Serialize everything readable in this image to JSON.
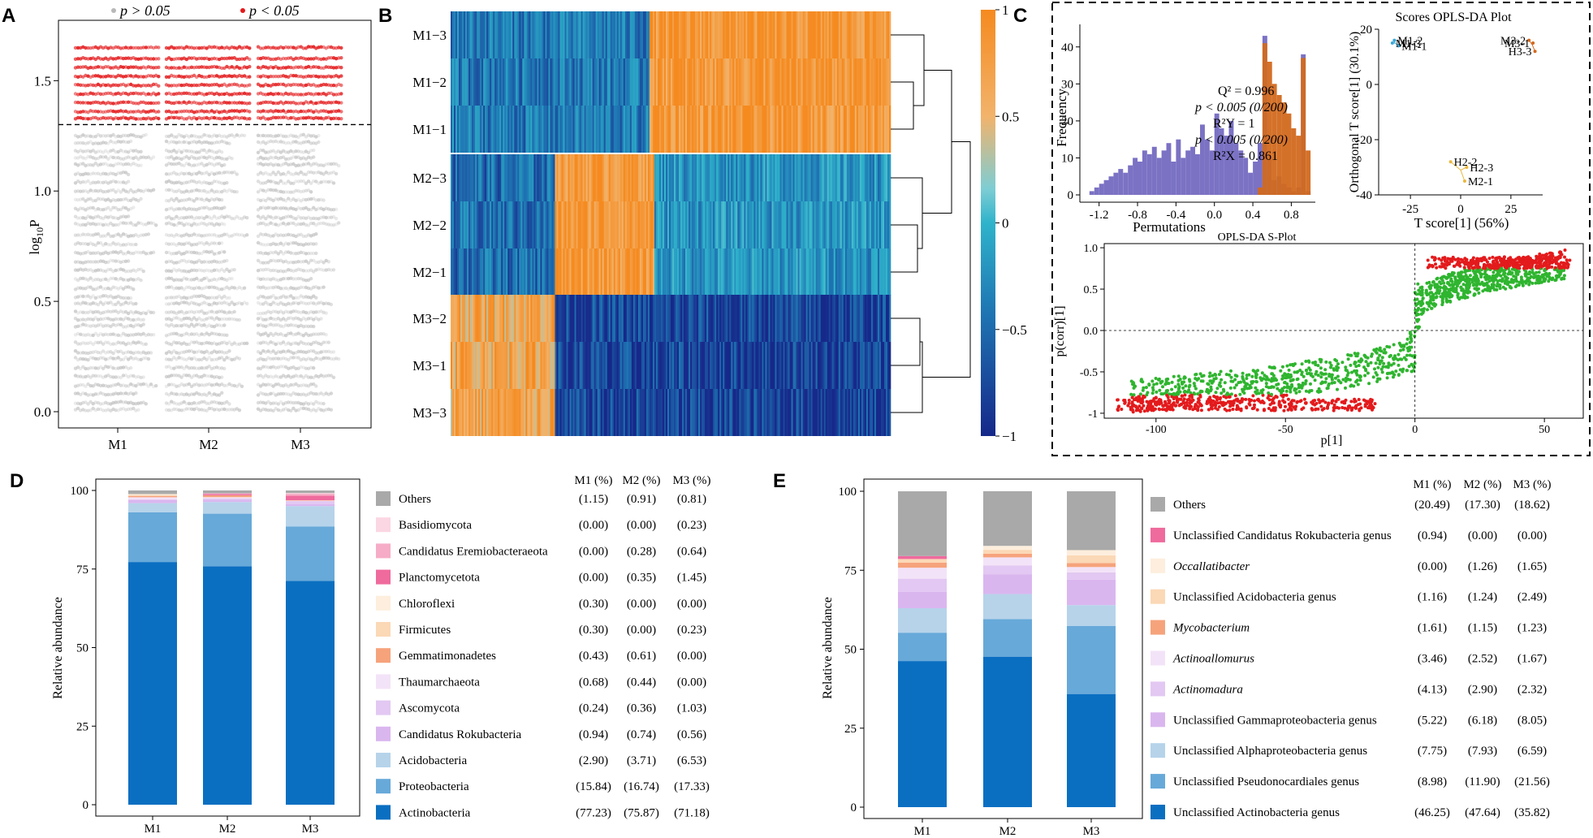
{
  "panel_letters": [
    "A",
    "B",
    "C",
    "D",
    "E"
  ],
  "chart_data": [
    {
      "panel": "A",
      "type": "scatter",
      "title": "",
      "xlabel": "",
      "ylabel": "log10P",
      "ylabel_main": "log",
      "ylabel_sub": "10",
      "ylabel_tail": "P",
      "categories": [
        "M1",
        "M2",
        "M3"
      ],
      "ylim": [
        0,
        1.7
      ],
      "yticks": [
        "0.0",
        "0.5",
        "1.0",
        "1.5"
      ],
      "threshold": 1.30103,
      "legend": [
        {
          "label": "p > 0.05",
          "color": "#b8b8b8"
        },
        {
          "label": "p < 0.05",
          "color": "#e31a1c"
        }
      ],
      "red_levels": [
        1.65,
        1.6,
        1.56,
        1.52,
        1.48,
        1.44,
        1.4,
        1.36,
        1.33
      ],
      "gray_levels": [
        1.25,
        1.22,
        1.18,
        1.15,
        1.12,
        1.08,
        1.04,
        1.0,
        0.96,
        0.92,
        0.88,
        0.85,
        0.8,
        0.76,
        0.72,
        0.68,
        0.64,
        0.6,
        0.56,
        0.52,
        0.49,
        0.45,
        0.42,
        0.39,
        0.35,
        0.31,
        0.27,
        0.24,
        0.2,
        0.16,
        0.12,
        0.08,
        0.04,
        0.01
      ]
    },
    {
      "panel": "B",
      "type": "heatmap",
      "rows": [
        "M1−3",
        "M1−2",
        "M1−1",
        "M2−3",
        "M2−2",
        "M2−1",
        "M3−2",
        "M3−1",
        "M3−3"
      ],
      "colorbar_ticks": [
        "1",
        "0.5",
        "0",
        "−0.5",
        "−1"
      ],
      "colorbar_values": [
        1,
        0.5,
        0,
        -0.5,
        -1
      ],
      "clusters": [
        "M1",
        "M2",
        "M3"
      ]
    },
    {
      "panel": "C1",
      "type": "bar",
      "subtype": "histogram",
      "xlabel": "Permutations",
      "ylabel": "Frequency",
      "xticks": [
        "-1.2",
        "-0.8",
        "-0.4",
        "0.0",
        "0.4",
        "0.8"
      ],
      "xtick_values": [
        -1.2,
        -0.8,
        -0.4,
        0.0,
        0.4,
        0.8
      ],
      "yticks": [
        "0",
        "10",
        "20",
        "30",
        "40"
      ],
      "ylim": [
        0,
        45
      ],
      "xlim": [
        -1.4,
        1.05
      ],
      "annotations": [
        "Q² = 0.996",
        "p < 0.005 (0/200)",
        "R²Y = 1",
        "p < 0.005 (0/200)",
        "R²X = 0.861"
      ],
      "series": [
        {
          "name": "Q2",
          "color": "#7b72c4",
          "x": [
            -1.3,
            -1.25,
            -1.2,
            -1.15,
            -1.1,
            -1.05,
            -1.0,
            -0.95,
            -0.9,
            -0.85,
            -0.8,
            -0.75,
            -0.7,
            -0.65,
            -0.6,
            -0.55,
            -0.5,
            -0.45,
            -0.4,
            -0.35,
            -0.3,
            -0.25,
            -0.2,
            -0.15,
            -0.1,
            -0.05,
            0.0,
            0.05,
            0.1,
            0.15,
            0.2,
            0.25,
            0.3,
            0.35,
            0.4,
            0.45,
            0.5,
            0.55,
            0.6,
            0.65,
            0.7,
            0.75,
            0.8,
            0.85,
            0.9,
            0.95
          ],
          "values": [
            1,
            2,
            3,
            4,
            5,
            6,
            7,
            6,
            8,
            10,
            9,
            12,
            11,
            13,
            10,
            12,
            14,
            9,
            15,
            10,
            12,
            13,
            11,
            19,
            15,
            12,
            22,
            18,
            16,
            20,
            14,
            12,
            10,
            6,
            9,
            14,
            43,
            10,
            4,
            5,
            3,
            2,
            1,
            2,
            38,
            1
          ]
        },
        {
          "name": "R2Y",
          "color": "#d2691e",
          "x": [
            0.45,
            0.5,
            0.55,
            0.6,
            0.65,
            0.7,
            0.75,
            0.8,
            0.85,
            0.9,
            0.95
          ],
          "values": [
            2,
            41,
            36,
            30,
            27,
            25,
            22,
            18,
            16,
            37,
            12
          ]
        }
      ]
    },
    {
      "panel": "C2",
      "type": "scatter",
      "title": "Scores OPLS-DA Plot",
      "xlabel": "T score[1] (56%)",
      "ylabel": "Orthogonal T score[1] (30.1%)",
      "xlim": [
        -40,
        40
      ],
      "ylim": [
        -40,
        20
      ],
      "xticks": [
        "-25",
        "0",
        "25"
      ],
      "xtick_values": [
        -25,
        0,
        25
      ],
      "yticks": [
        "20",
        "0",
        "-20",
        "-40"
      ],
      "ytick_values": [
        20,
        0,
        -20,
        -40
      ],
      "groups": [
        {
          "name": "M1",
          "color": "#3aa8d8",
          "labels": [
            "M1-2",
            "M1-1",
            "M1-3"
          ],
          "x": [
            -33,
            -31,
            -34
          ],
          "y": [
            16,
            14,
            15
          ]
        },
        {
          "name": "M2",
          "color": "#e9b840",
          "labels": [
            "H2-2",
            "H2-3",
            "M2-1"
          ],
          "x": [
            -5,
            3,
            2
          ],
          "y": [
            -28,
            -30,
            -35
          ]
        },
        {
          "name": "M3",
          "color": "#d2691e",
          "labels": [
            "M3-2",
            "H3-3",
            "M3-1"
          ],
          "x": [
            34,
            37,
            36
          ],
          "y": [
            16,
            12,
            15
          ]
        }
      ]
    },
    {
      "panel": "C3",
      "type": "scatter",
      "title": "OPLS-DA S-Plot",
      "xlabel": "p[1]",
      "ylabel": "p(corr)[1]",
      "xlim": [
        -120,
        65
      ],
      "ylim": [
        -1.05,
        1.05
      ],
      "xticks": [
        "-100",
        "-50",
        "0",
        "50"
      ],
      "xtick_values": [
        -100,
        -50,
        0,
        50
      ],
      "yticks": [
        "1.0",
        "0.5",
        "0.0",
        "-0.5",
        "-1"
      ],
      "ytick_values": [
        1.0,
        0.5,
        0.0,
        -0.5,
        -1.0
      ],
      "colors": {
        "significant": "#e31a1c",
        "other": "#2fb52f"
      }
    },
    {
      "panel": "D",
      "type": "bar",
      "subtype": "stacked-percent",
      "ylabel": "Relative abundance",
      "xlabel": "",
      "categories": [
        "M1",
        "M2",
        "M3"
      ],
      "ylim": [
        0,
        100
      ],
      "yticks": [
        "0",
        "25",
        "50",
        "75",
        "100"
      ],
      "column_headers": [
        "M1 (%)",
        "M2 (%)",
        "M3 (%)"
      ],
      "series": [
        {
          "name": "Actinobacteria",
          "color": "#0b6fc1",
          "values": [
            77.23,
            75.87,
            71.18
          ],
          "labels": [
            "(77.23)",
            "(75.87)",
            "(71.18)"
          ]
        },
        {
          "name": "Proteobacteria",
          "color": "#67a9d9",
          "values": [
            15.84,
            16.74,
            17.33
          ],
          "labels": [
            "(15.84)",
            "(16.74)",
            "(17.33)"
          ]
        },
        {
          "name": "Acidobacteria",
          "color": "#b6d3ea",
          "values": [
            2.9,
            3.71,
            6.53
          ],
          "labels": [
            "(2.90)",
            "(3.71)",
            "(6.53)"
          ]
        },
        {
          "name": "Candidatus Rokubacteria",
          "color": "#dab6ef",
          "values": [
            0.94,
            0.74,
            0.56
          ],
          "labels": [
            "(0.94)",
            "(0.74)",
            "(0.56)"
          ]
        },
        {
          "name": "Ascomycota",
          "color": "#e2c8f2",
          "values": [
            0.24,
            0.36,
            1.03
          ],
          "labels": [
            "(0.24)",
            "(0.36)",
            "(1.03)"
          ]
        },
        {
          "name": "Thaumarchaeota",
          "color": "#f3e3f8",
          "values": [
            0.68,
            0.44,
            0.0
          ],
          "labels": [
            "(0.68)",
            "(0.44)",
            "(0.00)"
          ]
        },
        {
          "name": "Gemmatimonadetes",
          "color": "#f6a37c",
          "values": [
            0.43,
            0.61,
            0.0
          ],
          "labels": [
            "(0.43)",
            "(0.61)",
            "(0.00)"
          ]
        },
        {
          "name": "Firmicutes",
          "color": "#fbd8b6",
          "values": [
            0.3,
            0.0,
            0.23
          ],
          "labels": [
            "(0.30)",
            "(0.00)",
            "(0.23)"
          ]
        },
        {
          "name": "Chloroflexi",
          "color": "#fdeedd",
          "values": [
            0.3,
            0.0,
            0.0
          ],
          "labels": [
            "(0.30)",
            "(0.00)",
            "(0.00)"
          ]
        },
        {
          "name": "Planctomycetota",
          "color": "#ef6a9d",
          "values": [
            0.0,
            0.35,
            1.45
          ],
          "labels": [
            "(0.00)",
            "(0.35)",
            "(1.45)"
          ]
        },
        {
          "name": "Candidatus Eremiobacteraeota",
          "color": "#f6acc6",
          "values": [
            0.0,
            0.28,
            0.64
          ],
          "labels": [
            "(0.00)",
            "(0.28)",
            "(0.64)"
          ]
        },
        {
          "name": "Basidiomycota",
          "color": "#fbd6e3",
          "values": [
            0.0,
            0.0,
            0.23
          ],
          "labels": [
            "(0.00)",
            "(0.00)",
            "(0.23)"
          ]
        },
        {
          "name": "Others",
          "color": "#a9a9a9",
          "values": [
            1.15,
            0.91,
            0.81
          ],
          "labels": [
            "(1.15)",
            "(0.91)",
            "(0.81)"
          ]
        }
      ]
    },
    {
      "panel": "E",
      "type": "bar",
      "subtype": "stacked-percent",
      "ylabel": "Relative abundance",
      "xlabel": "",
      "categories": [
        "M1",
        "M2",
        "M3"
      ],
      "ylim": [
        0,
        100
      ],
      "yticks": [
        "0",
        "25",
        "50",
        "75",
        "100"
      ],
      "column_headers": [
        "M1 (%)",
        "M2 (%)",
        "M3 (%)"
      ],
      "series": [
        {
          "name": "Unclassified Actinobacteria genus",
          "italic": false,
          "color": "#0b6fc1",
          "values": [
            46.25,
            47.64,
            35.82
          ],
          "labels": [
            "(46.25)",
            "(47.64)",
            "(35.82)"
          ]
        },
        {
          "name": "Unclassified Pseudonocardiales genus",
          "italic": false,
          "color": "#67a9d9",
          "values": [
            8.98,
            11.9,
            21.56
          ],
          "labels": [
            "(8.98)",
            "(11.90)",
            "(21.56)"
          ]
        },
        {
          "name": "Unclassified Alphaproteobacteria genus",
          "italic": false,
          "color": "#b6d3ea",
          "values": [
            7.75,
            7.93,
            6.59
          ],
          "labels": [
            "(7.75)",
            "(7.93)",
            "(6.59)"
          ]
        },
        {
          "name": "Unclassified Gammaproteobacteria genus",
          "italic": false,
          "color": "#dab6ef",
          "values": [
            5.22,
            6.18,
            8.05
          ],
          "labels": [
            "(5.22)",
            "(6.18)",
            "(8.05)"
          ]
        },
        {
          "name": "Actinomadura",
          "italic": true,
          "color": "#e2c8f2",
          "values": [
            4.13,
            2.9,
            2.32
          ],
          "labels": [
            "(4.13)",
            "(2.90)",
            "(2.32)"
          ]
        },
        {
          "name": "Actinoallomurus",
          "italic": true,
          "color": "#f3e3f8",
          "values": [
            3.46,
            2.52,
            1.67
          ],
          "labels": [
            "(3.46)",
            "(2.52)",
            "(1.67)"
          ]
        },
        {
          "name": "Mycobacterium",
          "italic": true,
          "color": "#f6a37c",
          "values": [
            1.61,
            1.15,
            1.23
          ],
          "labels": [
            "(1.61)",
            "(1.15)",
            "(1.23)"
          ]
        },
        {
          "name": "Unclassified Acidobacteria genus",
          "italic": false,
          "color": "#fbd8b6",
          "values": [
            1.16,
            1.24,
            2.49
          ],
          "labels": [
            "(1.16)",
            "(1.24)",
            "(2.49)"
          ]
        },
        {
          "name": "Occallatibacter",
          "italic": true,
          "color": "#fdeedd",
          "values": [
            0.0,
            1.26,
            1.65
          ],
          "labels": [
            "(0.00)",
            "(1.26)",
            "(1.65)"
          ]
        },
        {
          "name": "Unclassified Candidatus Rokubacteria genus",
          "italic": false,
          "color": "#ef6a9d",
          "values": [
            0.94,
            0.0,
            0.0
          ],
          "labels": [
            "(0.94)",
            "(0.00)",
            "(0.00)"
          ]
        },
        {
          "name": "Others",
          "italic": false,
          "color": "#a9a9a9",
          "values": [
            20.49,
            17.3,
            18.62
          ],
          "labels": [
            "(20.49)",
            "(17.30)",
            "(18.62)"
          ]
        }
      ]
    }
  ]
}
